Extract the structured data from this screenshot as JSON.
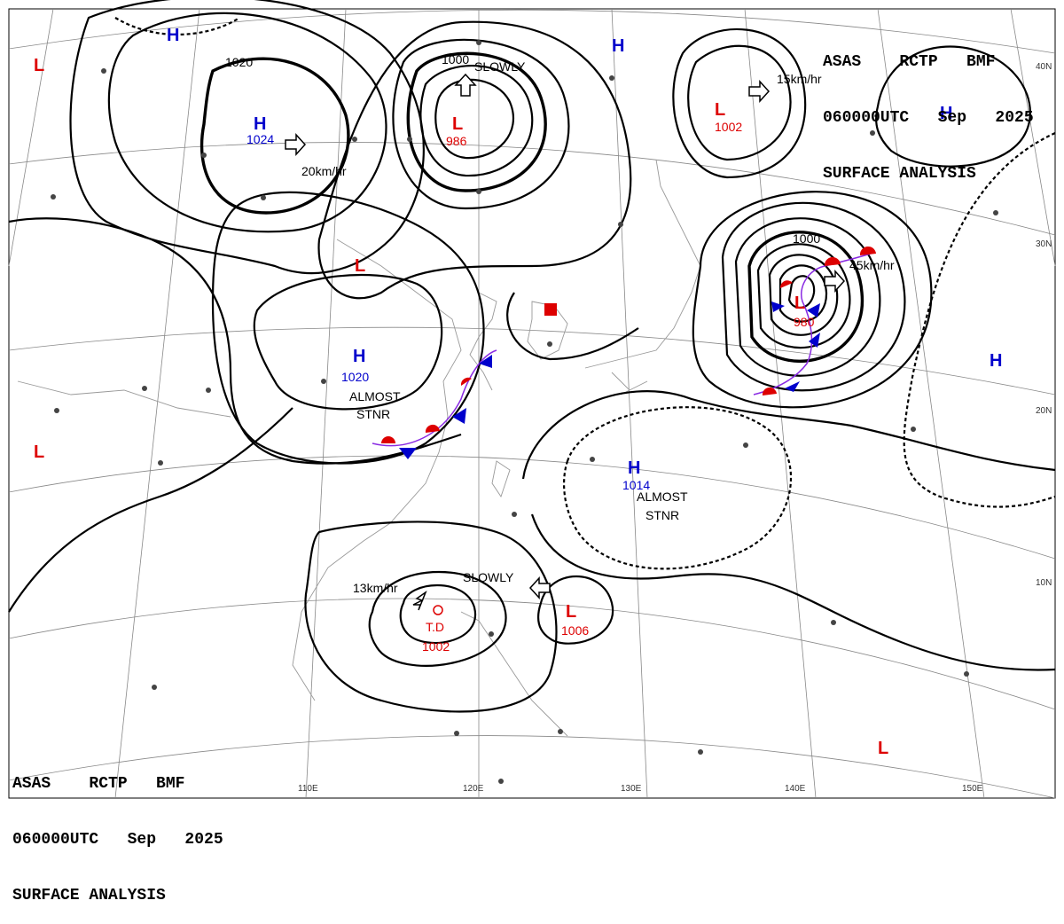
{
  "header": {
    "line1": "ASAS    RCTP   BMF",
    "line2": "060000UTC   Sep   2025",
    "line3": "SURFACE ANALYSIS"
  },
  "lon_labels": [
    "110E",
    "120E",
    "130E",
    "140E",
    "150E"
  ],
  "lat_labels": [
    "40N",
    "30N",
    "20N",
    "10N"
  ],
  "pressure_centers": [
    {
      "type": "H",
      "value": "1024"
    },
    {
      "type": "L",
      "value": "986"
    },
    {
      "type": "L",
      "value": "1002"
    },
    {
      "type": "H",
      "value": "1020"
    },
    {
      "type": "L",
      "value": "980"
    },
    {
      "type": "H",
      "value": "1014"
    },
    {
      "type": "L",
      "value": "1006"
    },
    {
      "type": "TD",
      "label": "T.D",
      "value": "1002"
    }
  ],
  "isobar_labels": [
    "1020",
    "1000",
    "1000"
  ],
  "motion_labels": [
    "20km/hr",
    "SLOWLY",
    "15km/hr",
    "45km/hr",
    "13km/hr",
    "SLOWLY"
  ],
  "status_labels": [
    {
      "line1": "ALMOST",
      "line2": "STNR"
    },
    {
      "line1": "ALMOST",
      "line2": "STNR"
    }
  ],
  "unlabeled_marks": {
    "H": "H",
    "L": "L"
  },
  "colors": {
    "high": "#0000cc",
    "low": "#dd0000",
    "isobar": "#000000",
    "grid": "#888888"
  }
}
